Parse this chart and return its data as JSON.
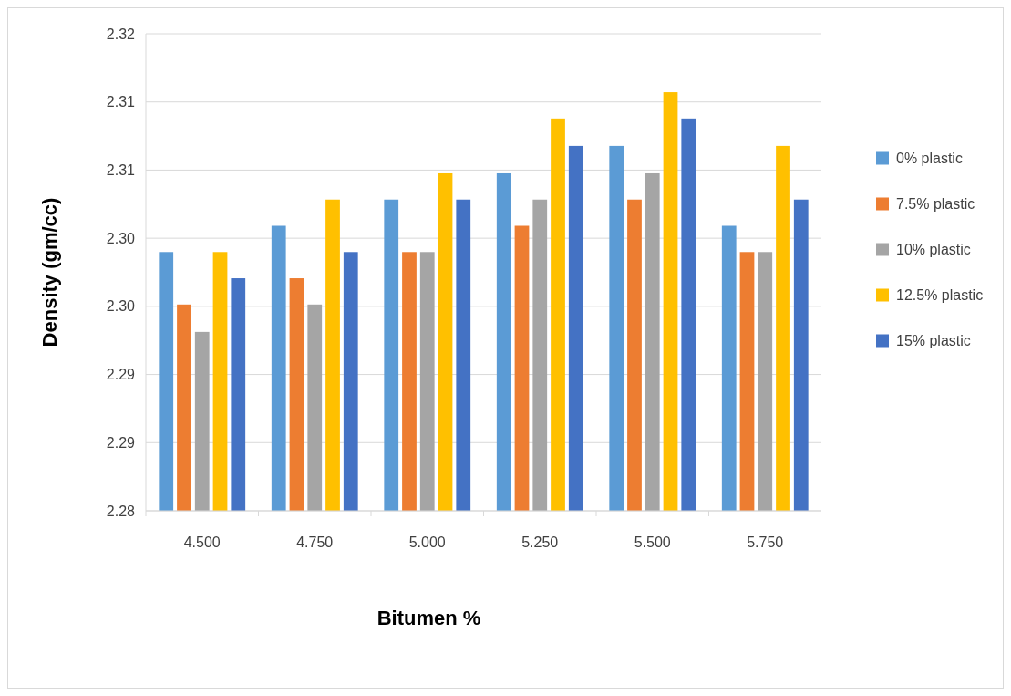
{
  "chart_data": {
    "type": "bar",
    "xlabel": "Bitumen %",
    "ylabel": "Density (gm/cc)",
    "categories": [
      "4.500",
      "4.750",
      "5.000",
      "5.250",
      "5.500",
      "5.750"
    ],
    "series": [
      {
        "name": "0% plastic",
        "color": "#5b9bd5",
        "values": [
          2.3017,
          2.3039,
          2.3061,
          2.3083,
          2.3106,
          2.3039
        ]
      },
      {
        "name": "7.5% plastic",
        "color": "#ed7d31",
        "values": [
          2.2973,
          2.2995,
          2.3017,
          2.3039,
          2.3061,
          2.3017
        ]
      },
      {
        "name": "10% plastic",
        "color": "#a5a5a5",
        "values": [
          2.295,
          2.2973,
          2.3017,
          2.3061,
          2.3083,
          2.3017
        ]
      },
      {
        "name": "12.5% plastic",
        "color": "#ffc000",
        "values": [
          2.3017,
          2.3061,
          2.3083,
          2.3129,
          2.3151,
          2.3106
        ]
      },
      {
        "name": "15% plastic",
        "color": "#4472c4",
        "values": [
          2.2995,
          2.3017,
          2.3061,
          2.3106,
          2.3129,
          2.3061
        ]
      }
    ],
    "ylim": [
      2.28,
      2.32
    ],
    "yticks": [
      2.28,
      {
        "value": 2.285714,
        "label": "2.29"
      },
      {
        "value": 2.291429,
        "label": "2.29"
      },
      {
        "value": 2.297143,
        "label": "2.30"
      },
      {
        "value": 2.302857,
        "label": "2.30"
      },
      {
        "value": 2.308571,
        "label": "2.31"
      },
      {
        "value": 2.314286,
        "label": "2.31"
      },
      2.32
    ],
    "grid": "y",
    "legend": "right"
  }
}
